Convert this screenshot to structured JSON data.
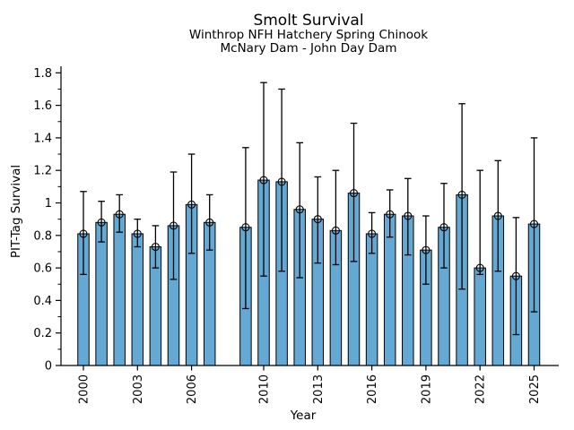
{
  "chart_data": {
    "type": "bar",
    "title": "Smolt Survival",
    "subtitle_line1": "Winthrop NFH Hatchery Spring Chinook",
    "subtitle_line2": "McNary Dam - John Day Dam",
    "xlabel": "Year",
    "ylabel": "PIT-Tag Survival",
    "ylim": [
      0,
      1.8
    ],
    "ytick_major_step": 0.2,
    "ytick_minor_step": 0.1,
    "ytick_labels": [
      "0",
      "0.2",
      "0.4",
      "0.6",
      "0.8",
      "1",
      "1.2",
      "1.4",
      "1.6",
      "1.8"
    ],
    "xtick_years": [
      2000,
      2003,
      2006,
      2010,
      2013,
      2016,
      2019,
      2022,
      2025
    ],
    "grid": false,
    "legend": "none",
    "bar_color": "#64a9d4",
    "edge_color": "#000000",
    "marker": "open-circle",
    "missing_years": [
      2008
    ],
    "points": [
      {
        "year": 2000,
        "value": 0.81,
        "lo": 0.56,
        "hi": 1.07
      },
      {
        "year": 2001,
        "value": 0.88,
        "lo": 0.76,
        "hi": 1.01
      },
      {
        "year": 2002,
        "value": 0.93,
        "lo": 0.82,
        "hi": 1.05
      },
      {
        "year": 2003,
        "value": 0.81,
        "lo": 0.73,
        "hi": 0.9
      },
      {
        "year": 2004,
        "value": 0.73,
        "lo": 0.6,
        "hi": 0.86
      },
      {
        "year": 2005,
        "value": 0.86,
        "lo": 0.53,
        "hi": 1.19
      },
      {
        "year": 2006,
        "value": 0.99,
        "lo": 0.69,
        "hi": 1.3
      },
      {
        "year": 2007,
        "value": 0.88,
        "lo": 0.71,
        "hi": 1.05
      },
      {
        "year": 2009,
        "value": 0.85,
        "lo": 0.35,
        "hi": 1.34
      },
      {
        "year": 2010,
        "value": 1.14,
        "lo": 0.55,
        "hi": 1.74
      },
      {
        "year": 2011,
        "value": 1.13,
        "lo": 0.58,
        "hi": 1.7
      },
      {
        "year": 2012,
        "value": 0.96,
        "lo": 0.54,
        "hi": 1.37
      },
      {
        "year": 2013,
        "value": 0.9,
        "lo": 0.63,
        "hi": 1.16
      },
      {
        "year": 2014,
        "value": 0.83,
        "lo": 0.62,
        "hi": 1.2
      },
      {
        "year": 2015,
        "value": 1.06,
        "lo": 0.64,
        "hi": 1.49
      },
      {
        "year": 2016,
        "value": 0.81,
        "lo": 0.69,
        "hi": 0.94
      },
      {
        "year": 2017,
        "value": 0.93,
        "lo": 0.79,
        "hi": 1.08
      },
      {
        "year": 2018,
        "value": 0.92,
        "lo": 0.68,
        "hi": 1.15
      },
      {
        "year": 2019,
        "value": 0.71,
        "lo": 0.5,
        "hi": 0.92
      },
      {
        "year": 2020,
        "value": 0.85,
        "lo": 0.6,
        "hi": 1.12
      },
      {
        "year": 2021,
        "value": 1.05,
        "lo": 0.47,
        "hi": 1.61
      },
      {
        "year": 2022,
        "value": 0.6,
        "lo": 0.56,
        "hi": 1.2
      },
      {
        "year": 2023,
        "value": 0.92,
        "lo": 0.58,
        "hi": 1.26
      },
      {
        "year": 2024,
        "value": 0.55,
        "lo": 0.19,
        "hi": 0.91
      },
      {
        "year": 2025,
        "value": 0.87,
        "lo": 0.33,
        "hi": 1.4
      }
    ]
  }
}
